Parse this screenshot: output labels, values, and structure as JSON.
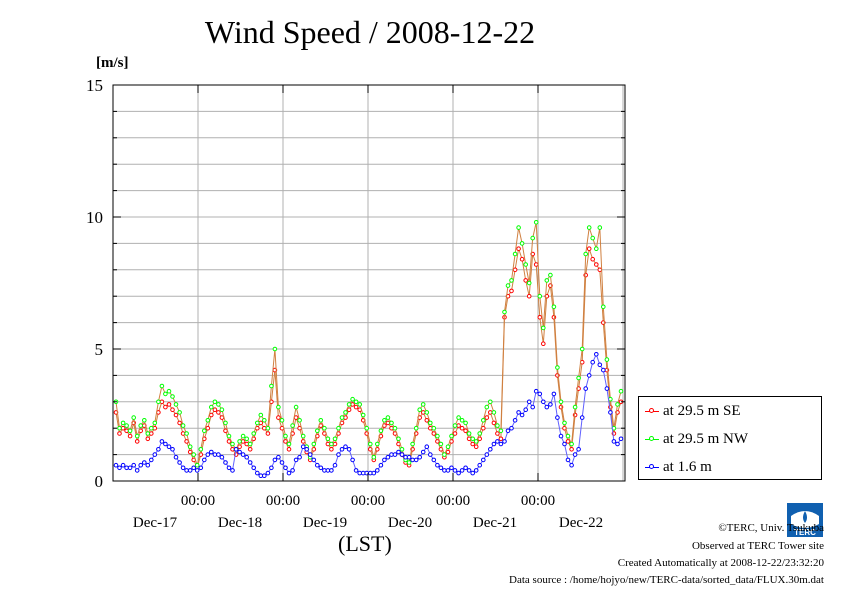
{
  "chart_data": {
    "type": "line",
    "title": "Wind Speed / 2008-12-22",
    "ylabel": "[m/s]",
    "xlabel": "(LST)",
    "ylim": [
      0,
      15
    ],
    "yticks": [
      "0",
      "5",
      "10",
      "15"
    ],
    "grid": true,
    "legend_position": "right",
    "x_time_ticks": [
      "00:00",
      "00:00",
      "00:00",
      "00:00",
      "00:00"
    ],
    "x_date_labels": [
      "Dec-17",
      "Dec-18",
      "Dec-19",
      "Dec-20",
      "Dec-21",
      "Dec-22"
    ],
    "x_start": "2008-12-16 15:00",
    "x_end": "2008-12-22 23:30",
    "series": [
      {
        "name": "at 29.5 m SE",
        "color": "#ff0000",
        "values": [
          2.6,
          1.8,
          2.0,
          1.9,
          1.7,
          2.2,
          1.5,
          1.9,
          2.1,
          1.6,
          1.8,
          2.0,
          2.6,
          3.0,
          2.8,
          2.9,
          2.7,
          2.5,
          2.2,
          1.8,
          1.5,
          1.1,
          0.8,
          0.5,
          1.0,
          1.6,
          2.0,
          2.5,
          2.7,
          2.6,
          2.4,
          1.9,
          1.5,
          1.2,
          1.0,
          1.3,
          1.5,
          1.4,
          1.2,
          1.6,
          2.0,
          2.2,
          2.0,
          1.8,
          3.0,
          4.2,
          2.4,
          2.0,
          1.5,
          1.2,
          1.8,
          2.4,
          2.0,
          1.5,
          1.1,
          0.8,
          1.2,
          1.7,
          2.1,
          1.8,
          1.4,
          1.2,
          1.4,
          1.8,
          2.2,
          2.4,
          2.7,
          2.9,
          2.8,
          2.7,
          2.3,
          1.8,
          1.2,
          0.8,
          1.2,
          1.7,
          2.1,
          2.2,
          2.0,
          1.8,
          1.4,
          1.0,
          0.7,
          0.6,
          1.2,
          1.8,
          2.4,
          2.6,
          2.3,
          2.0,
          1.8,
          1.5,
          1.2,
          0.9,
          1.1,
          1.5,
          1.8,
          2.1,
          2.0,
          1.9,
          1.6,
          1.4,
          1.3,
          1.6,
          2.0,
          2.4,
          2.6,
          2.2,
          1.8,
          1.6,
          6.2,
          7.0,
          7.2,
          8.0,
          8.8,
          8.4,
          7.6,
          7.0,
          8.6,
          8.2,
          6.2,
          5.2,
          7.0,
          7.4,
          6.2,
          4.0,
          2.8,
          2.0,
          1.5,
          1.2,
          2.5,
          3.5,
          4.5,
          7.8,
          8.8,
          8.4,
          8.2,
          8.0,
          6.0,
          4.2,
          2.8,
          1.8,
          2.6,
          3.0
        ]
      },
      {
        "name": "at 29.5 m NW",
        "color": "#00ff00",
        "values": [
          3.0,
          2.0,
          2.2,
          2.1,
          1.9,
          2.4,
          1.7,
          2.1,
          2.3,
          1.8,
          2.0,
          2.2,
          3.0,
          3.6,
          3.3,
          3.4,
          3.2,
          2.9,
          2.6,
          2.1,
          1.8,
          1.3,
          1.0,
          0.6,
          1.2,
          1.9,
          2.3,
          2.8,
          3.0,
          2.9,
          2.7,
          2.2,
          1.7,
          1.4,
          1.2,
          1.5,
          1.7,
          1.6,
          1.4,
          1.8,
          2.2,
          2.5,
          2.3,
          2.0,
          3.6,
          5.0,
          2.8,
          2.3,
          1.7,
          1.4,
          2.1,
          2.8,
          2.3,
          1.7,
          1.3,
          0.9,
          1.4,
          1.9,
          2.3,
          2.0,
          1.6,
          1.4,
          1.6,
          2.0,
          2.4,
          2.6,
          2.9,
          3.1,
          3.0,
          2.9,
          2.5,
          2.0,
          1.4,
          0.9,
          1.4,
          1.9,
          2.3,
          2.4,
          2.2,
          2.0,
          1.6,
          1.2,
          0.8,
          0.7,
          1.4,
          2.0,
          2.7,
          2.9,
          2.6,
          2.2,
          2.0,
          1.7,
          1.4,
          1.0,
          1.3,
          1.7,
          2.1,
          2.4,
          2.3,
          2.2,
          1.8,
          1.6,
          1.5,
          1.8,
          2.3,
          2.8,
          3.0,
          2.6,
          2.1,
          1.9,
          6.4,
          7.4,
          7.6,
          8.6,
          9.6,
          9.0,
          8.2,
          7.5,
          9.2,
          9.8,
          7.0,
          5.8,
          7.6,
          7.8,
          6.6,
          4.3,
          3.0,
          2.2,
          1.7,
          1.4,
          2.8,
          3.9,
          5.0,
          8.6,
          9.6,
          9.2,
          8.8,
          9.6,
          6.6,
          4.6,
          3.1,
          2.0,
          2.9,
          3.4
        ]
      },
      {
        "name": "at 1.6 m",
        "color": "#0000ff",
        "values": [
          0.6,
          0.5,
          0.6,
          0.5,
          0.5,
          0.6,
          0.4,
          0.6,
          0.7,
          0.6,
          0.8,
          1.0,
          1.2,
          1.5,
          1.4,
          1.3,
          1.2,
          0.9,
          0.7,
          0.5,
          0.4,
          0.4,
          0.5,
          0.4,
          0.5,
          0.8,
          1.0,
          1.1,
          1.0,
          1.0,
          0.9,
          0.7,
          0.5,
          0.4,
          1.2,
          1.1,
          1.0,
          0.9,
          0.7,
          0.5,
          0.3,
          0.2,
          0.2,
          0.3,
          0.5,
          0.8,
          0.9,
          0.7,
          0.5,
          0.3,
          0.4,
          0.8,
          0.9,
          1.3,
          1.2,
          1.0,
          0.8,
          0.6,
          0.5,
          0.4,
          0.4,
          0.4,
          0.6,
          1.0,
          1.2,
          1.3,
          1.2,
          0.8,
          0.4,
          0.3,
          0.3,
          0.3,
          0.3,
          0.3,
          0.4,
          0.6,
          0.8,
          0.9,
          1.0,
          1.0,
          1.1,
          1.0,
          0.9,
          0.9,
          0.8,
          0.8,
          0.9,
          1.1,
          1.3,
          1.0,
          0.8,
          0.6,
          0.5,
          0.4,
          0.4,
          0.5,
          0.4,
          0.3,
          0.4,
          0.5,
          0.4,
          0.3,
          0.4,
          0.6,
          0.8,
          1.0,
          1.2,
          1.4,
          1.5,
          1.4,
          1.5,
          1.9,
          2.0,
          2.3,
          2.6,
          2.5,
          2.7,
          3.0,
          2.8,
          3.4,
          3.3,
          3.0,
          2.8,
          2.9,
          3.3,
          2.4,
          1.7,
          1.4,
          0.8,
          0.6,
          1.0,
          1.2,
          2.4,
          3.5,
          4.0,
          4.5,
          4.8,
          4.4,
          4.2,
          3.5,
          2.6,
          1.5,
          1.4,
          1.6
        ]
      }
    ]
  },
  "credits": {
    "line1": "©TERC, Univ. Tsukuba",
    "line2": "Observed at TERC Tower site",
    "line3": "Created Automatically at 2008-12-22/23:32:20",
    "line4": "Data source : /home/hojyo/new/TERC-data/sorted_data/FLUX.30m.dat"
  },
  "logo": {
    "icon": "terc-logo-icon",
    "text": "TERC",
    "color": "#1060b0"
  }
}
